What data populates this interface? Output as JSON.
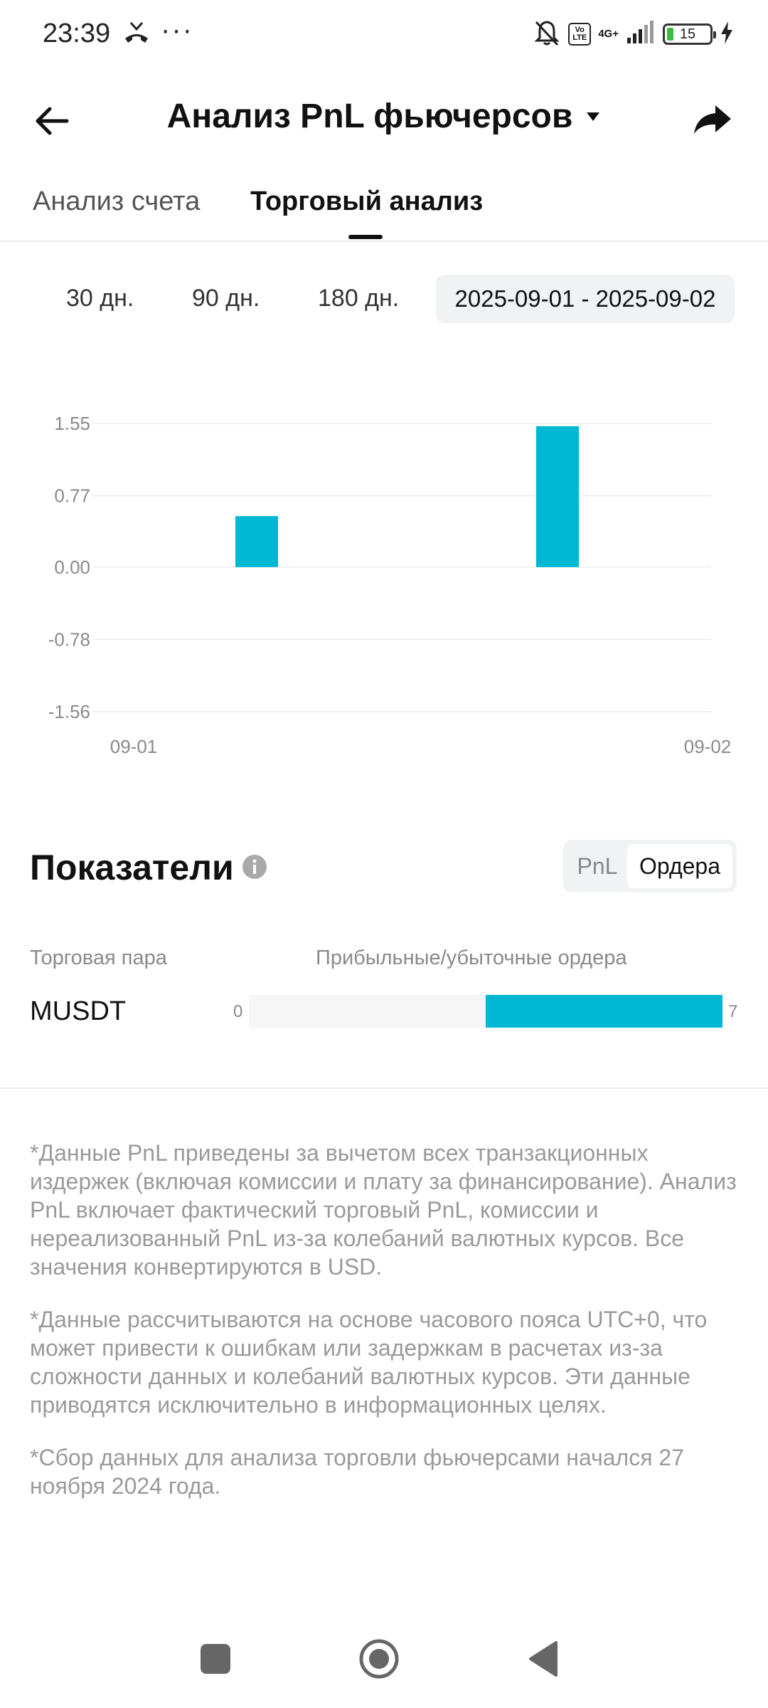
{
  "status_bar": {
    "time": "23:39",
    "dots": "···",
    "volte": "Vo\nLTE",
    "network": "4G+",
    "battery": "15",
    "icons": [
      "missed-call-icon",
      "bell-off-icon",
      "volte-icon",
      "signal-icon",
      "battery-icon",
      "charging-icon"
    ]
  },
  "header": {
    "title": "Анализ PnL фьючерсов",
    "icons": [
      "back-arrow-icon",
      "caret-down-icon",
      "share-icon"
    ]
  },
  "tabs": [
    {
      "label": "Анализ счета",
      "active": false
    },
    {
      "label": "Торговый анализ",
      "active": true
    }
  ],
  "periods": {
    "p30": "30 дн.",
    "p90": "90 дн.",
    "p180": "180 дн.",
    "range": "2025-09-01 - 2025-09-02"
  },
  "chart_data": {
    "type": "bar",
    "categories": [
      "09-01",
      "09-02"
    ],
    "values": [
      0.55,
      1.52
    ],
    "xlabels": [
      "09-01",
      "09-02"
    ],
    "yticks": [
      "1.55",
      "0.77",
      "0.00",
      "-0.78",
      "-1.56"
    ],
    "ytick_values": [
      1.55,
      0.77,
      0.0,
      -0.78,
      -1.56
    ],
    "ylim": [
      -1.56,
      1.55
    ],
    "grid": true,
    "bar_color": "#00b8d4"
  },
  "indicators": {
    "title": "Показатели",
    "toggle": {
      "pnl": "PnL",
      "orders": "Ордера"
    },
    "col_pair": "Торговая пара",
    "col_orders": "Прибыльные/убыточные ордера",
    "rows": [
      {
        "pair": "MUSDT",
        "min": "0",
        "max": "7",
        "profit_fraction": 0.5
      }
    ],
    "accent": "#00b8d4"
  },
  "notes": [
    "*Данные PnL приведены за вычетом всех транзакционных издержек (включая комиссии и плату за финансирование). Анализ PnL включает фактический торговый PnL, комиссии и нереализованный PnL из-за колебаний валютных курсов. Все значения конвертируются в USD.",
    "*Данные рассчитываются на основе часового пояса UTC+0, что может привести к ошибкам или задержкам в расчетах из-за сложности данных и колебаний валютных курсов. Эти данные приводятся исключительно в информационных целях.",
    "*Сбор данных для анализа торговли фьючерсами начался 27 ноября 2024 года."
  ],
  "navbar": {
    "icons": [
      "recents-square-icon",
      "home-circle-icon",
      "back-triangle-icon"
    ]
  }
}
